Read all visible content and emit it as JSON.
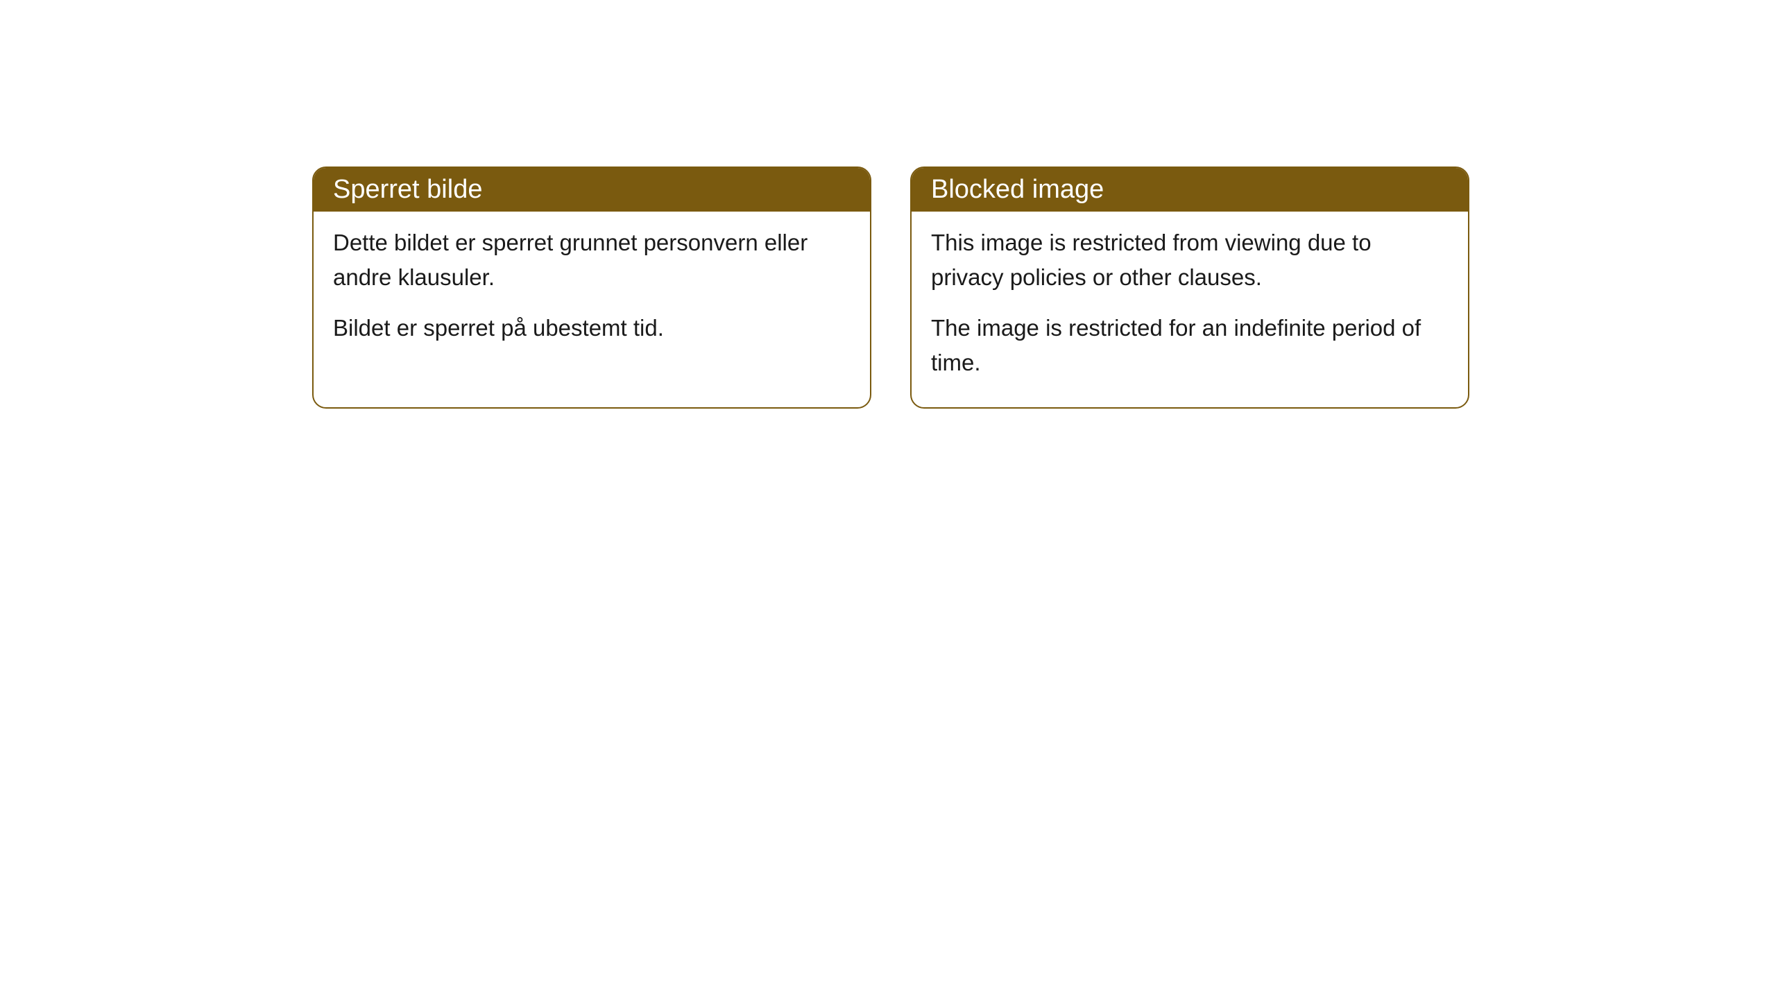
{
  "cards": [
    {
      "title": "Sperret bilde",
      "paragraph1": "Dette bildet er sperret grunnet personvern eller andre klausuler.",
      "paragraph2": "Bildet er sperret på ubestemt tid."
    },
    {
      "title": "Blocked image",
      "paragraph1": "This image is restricted from viewing due to privacy policies or other clauses.",
      "paragraph2": "The image is restricted for an indefinite period of time."
    }
  ],
  "styling": {
    "header_background": "#7a5a0f",
    "header_text_color": "#ffffff",
    "border_color": "#7a5a0f",
    "body_background": "#ffffff",
    "body_text_color": "#1a1a1a",
    "border_radius": 20,
    "header_fontsize": 38,
    "body_fontsize": 33
  }
}
